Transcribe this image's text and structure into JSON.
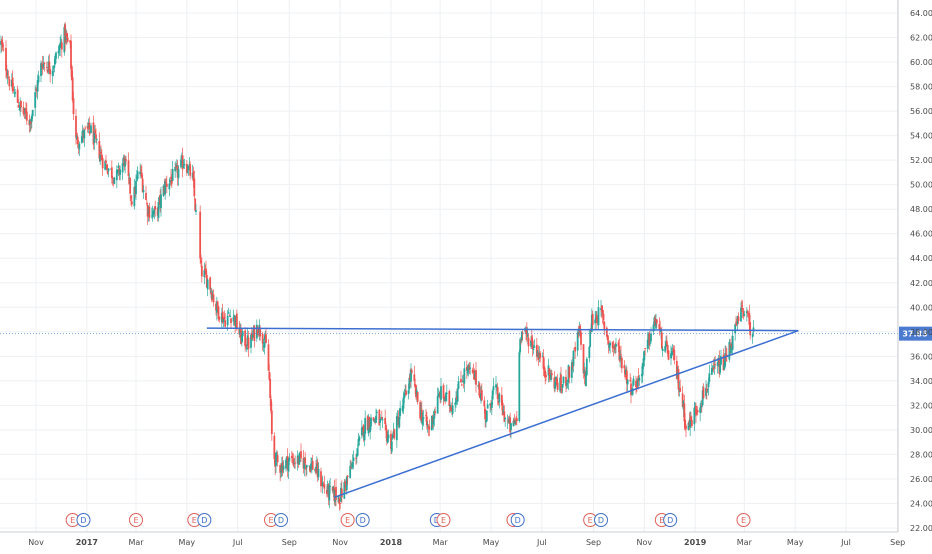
{
  "chart_data": {
    "type": "candlestick",
    "title": "",
    "xlabel": "",
    "ylabel": "",
    "ylim": [
      22,
      64
    ],
    "y_ticks": [
      "22.00",
      "24.00",
      "26.00",
      "28.00",
      "30.00",
      "32.00",
      "34.00",
      "36.00",
      "38.00",
      "40.00",
      "42.00",
      "44.00",
      "46.00",
      "48.00",
      "50.00",
      "52.00",
      "54.00",
      "56.00",
      "58.00",
      "60.00",
      "62.00",
      "64.00"
    ],
    "x_ticks": [
      {
        "label": "Nov",
        "date": "2016-11-01"
      },
      {
        "label": "2017",
        "date": "2017-01-01"
      },
      {
        "label": "Mar",
        "date": "2017-03-01"
      },
      {
        "label": "May",
        "date": "2017-05-01"
      },
      {
        "label": "Jul",
        "date": "2017-07-01"
      },
      {
        "label": "Sep",
        "date": "2017-09-01"
      },
      {
        "label": "Nov",
        "date": "2017-11-01"
      },
      {
        "label": "2018",
        "date": "2018-01-01"
      },
      {
        "label": "Mar",
        "date": "2018-03-01"
      },
      {
        "label": "May",
        "date": "2018-05-01"
      },
      {
        "label": "Jul",
        "date": "2018-07-01"
      },
      {
        "label": "Sep",
        "date": "2018-09-01"
      },
      {
        "label": "Nov",
        "date": "2018-11-01"
      },
      {
        "label": "2019",
        "date": "2019-01-01"
      },
      {
        "label": "Mar",
        "date": "2019-03-01"
      },
      {
        "label": "May",
        "date": "2019-05-01"
      },
      {
        "label": "Jul",
        "date": "2019-07-01"
      },
      {
        "label": "Sep",
        "date": "2019-09-01"
      }
    ],
    "price_path": [
      [
        "2016-09-20",
        61.5
      ],
      [
        "2016-10-01",
        58.2
      ],
      [
        "2016-10-15",
        56.0
      ],
      [
        "2016-10-25",
        55.2
      ],
      [
        "2016-11-08",
        60.0
      ],
      [
        "2016-11-20",
        59.5
      ],
      [
        "2016-12-05",
        62.2
      ],
      [
        "2016-12-12",
        61.0
      ],
      [
        "2016-12-18",
        53.5
      ],
      [
        "2017-01-05",
        54.5
      ],
      [
        "2017-01-20",
        52.0
      ],
      [
        "2017-02-05",
        50.5
      ],
      [
        "2017-02-15",
        52.0
      ],
      [
        "2017-02-25",
        48.5
      ],
      [
        "2017-03-05",
        51.5
      ],
      [
        "2017-03-15",
        48.0
      ],
      [
        "2017-03-25",
        47.5
      ],
      [
        "2017-04-05",
        50.0
      ],
      [
        "2017-04-20",
        51.0
      ],
      [
        "2017-04-28",
        52.0
      ],
      [
        "2017-05-08",
        50.5
      ],
      [
        "2017-05-12",
        47.5
      ],
      [
        "2017-05-18",
        43.0
      ],
      [
        "2017-05-28",
        42.0
      ],
      [
        "2017-06-05",
        40.0
      ],
      [
        "2017-06-15",
        39.0
      ],
      [
        "2017-06-25",
        39.5
      ],
      [
        "2017-07-05",
        37.5
      ],
      [
        "2017-07-15",
        37.0
      ],
      [
        "2017-07-25",
        38.5
      ],
      [
        "2017-08-01",
        37.5
      ],
      [
        "2017-08-05",
        36.5
      ],
      [
        "2017-08-08",
        34.0
      ],
      [
        "2017-08-12",
        28.0
      ],
      [
        "2017-08-20",
        27.0
      ],
      [
        "2017-09-01",
        27.5
      ],
      [
        "2017-09-15",
        27.5
      ],
      [
        "2017-10-01",
        27.0
      ],
      [
        "2017-10-15",
        25.0
      ],
      [
        "2017-11-01",
        24.5
      ],
      [
        "2017-11-15",
        27.0
      ],
      [
        "2017-12-01",
        30.5
      ],
      [
        "2017-12-15",
        31.0
      ],
      [
        "2018-01-01",
        29.0
      ],
      [
        "2018-01-15",
        32.0
      ],
      [
        "2018-01-25",
        34.5
      ],
      [
        "2018-02-05",
        31.5
      ],
      [
        "2018-02-15",
        30.0
      ],
      [
        "2018-03-01",
        33.0
      ],
      [
        "2018-03-15",
        32.0
      ],
      [
        "2018-04-01",
        35.0
      ],
      [
        "2018-04-15",
        34.0
      ],
      [
        "2018-04-25",
        31.0
      ],
      [
        "2018-05-05",
        33.5
      ],
      [
        "2018-05-15",
        31.5
      ],
      [
        "2018-05-25",
        30.0
      ],
      [
        "2018-06-01",
        31.0
      ],
      [
        "2018-06-05",
        38.0
      ],
      [
        "2018-06-15",
        37.5
      ],
      [
        "2018-06-25",
        36.5
      ],
      [
        "2018-07-05",
        35.0
      ],
      [
        "2018-07-15",
        34.0
      ],
      [
        "2018-07-25",
        33.5
      ],
      [
        "2018-08-05",
        35.0
      ],
      [
        "2018-08-15",
        38.0
      ],
      [
        "2018-08-22",
        34.0
      ],
      [
        "2018-08-30",
        39.0
      ],
      [
        "2018-09-10",
        39.5
      ],
      [
        "2018-09-20",
        37.0
      ],
      [
        "2018-10-01",
        36.5
      ],
      [
        "2018-10-15",
        33.5
      ],
      [
        "2018-10-25",
        34.0
      ],
      [
        "2018-11-05",
        37.0
      ],
      [
        "2018-11-15",
        39.0
      ],
      [
        "2018-11-25",
        36.5
      ],
      [
        "2018-12-05",
        36.0
      ],
      [
        "2018-12-15",
        33.0
      ],
      [
        "2018-12-22",
        30.0
      ],
      [
        "2019-01-01",
        31.5
      ],
      [
        "2019-01-15",
        33.5
      ],
      [
        "2019-01-25",
        35.0
      ],
      [
        "2019-02-05",
        35.5
      ],
      [
        "2019-02-15",
        37.5
      ],
      [
        "2019-02-25",
        39.5
      ],
      [
        "2019-03-01",
        40.0
      ],
      [
        "2019-03-07",
        38.5
      ],
      [
        "2019-03-12",
        37.85
      ]
    ],
    "trendlines": [
      {
        "name": "resistance",
        "start": [
          "2017-05-25",
          38.3
        ],
        "end": [
          "2019-05-05",
          38.1
        ]
      },
      {
        "name": "support",
        "start": [
          "2017-10-25",
          24.5
        ],
        "end": [
          "2019-05-05",
          38.1
        ]
      }
    ],
    "last_price": {
      "value": 37.85,
      "label": "37.85"
    },
    "events": [
      {
        "type": "E",
        "date": "2016-12-15"
      },
      {
        "type": "D",
        "date": "2016-12-28"
      },
      {
        "type": "E",
        "date": "2017-03-01"
      },
      {
        "type": "E",
        "date": "2017-05-10"
      },
      {
        "type": "D",
        "date": "2017-05-22"
      },
      {
        "type": "E",
        "date": "2017-08-10"
      },
      {
        "type": "D",
        "date": "2017-08-22"
      },
      {
        "type": "E",
        "date": "2017-11-10"
      },
      {
        "type": "D",
        "date": "2017-11-28"
      },
      {
        "type": "D",
        "date": "2018-02-25"
      },
      {
        "type": "E",
        "date": "2018-03-05"
      },
      {
        "type": "E",
        "date": "2018-05-28"
      },
      {
        "type": "D",
        "date": "2018-06-02"
      },
      {
        "type": "E",
        "date": "2018-08-28"
      },
      {
        "type": "D",
        "date": "2018-09-10"
      },
      {
        "type": "E",
        "date": "2018-11-22"
      },
      {
        "type": "D",
        "date": "2018-12-02"
      },
      {
        "type": "E",
        "date": "2019-02-28"
      }
    ],
    "colors": {
      "up": "#26a69a",
      "down": "#ef5350",
      "trendline": "#3d6fd1",
      "price_line": "#5b8fd9",
      "price_label_bg": "#4a7bd0",
      "grid": "#eef0f3",
      "axis_text": "#4a4a4a",
      "earnings": "#e0605a",
      "dividend": "#3f6fc6"
    },
    "grid": true
  }
}
